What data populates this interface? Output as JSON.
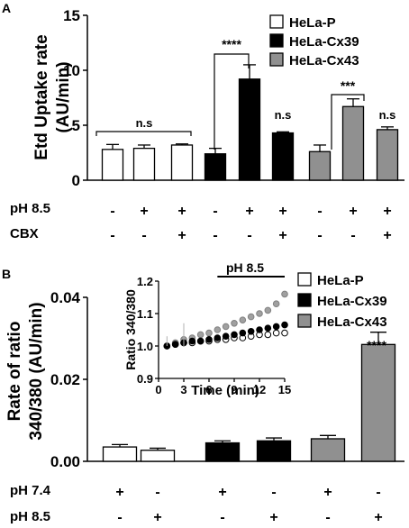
{
  "chart_data": [
    {
      "panel": "A",
      "type": "bar",
      "ylabel_line1": "Etd Uptake rate",
      "ylabel_line2": "(AU/min)",
      "ylim": [
        0,
        15
      ],
      "yticks": [
        "0",
        "5",
        "10",
        "15"
      ],
      "categories": [
        "1",
        "2",
        "3",
        "4",
        "5",
        "6",
        "7",
        "8",
        "9"
      ],
      "values": [
        2.8,
        2.9,
        3.2,
        2.4,
        9.2,
        4.3,
        2.6,
        6.7,
        4.6
      ],
      "errors": [
        0.45,
        0.3,
        0.1,
        0.5,
        1.3,
        0.1,
        0.6,
        0.7,
        0.25
      ],
      "groups": [
        0,
        0,
        0,
        1,
        1,
        1,
        2,
        2,
        2
      ],
      "series": [
        {
          "name": "HeLa-P",
          "color": "#ffffff"
        },
        {
          "name": "HeLa-Cx39",
          "color": "#000000"
        },
        {
          "name": "HeLa-Cx43",
          "color": "#909090"
        }
      ],
      "conditions": [
        {
          "label": "pH 8.5",
          "marks": [
            "-",
            "+",
            "+",
            "-",
            "+",
            "+",
            "-",
            "+",
            "+"
          ]
        },
        {
          "label": "CBX",
          "marks": [
            "-",
            "-",
            "+",
            "-",
            "-",
            "+",
            "-",
            "-",
            "+"
          ]
        }
      ],
      "annotations": {
        "ns_group": "n.s",
        "stars_cx39": "****",
        "ns_cx39": "n.s",
        "stars_cx43": "***",
        "ns_cx43": "n.s"
      },
      "legend_position": "top-right"
    },
    {
      "panel": "B",
      "type": "bar",
      "ylabel_line1": "Rate of ratio",
      "ylabel_line2": "340/380 (AU/min)",
      "ylim": [
        0,
        0.04
      ],
      "yticks": [
        "0.00",
        "0.02",
        "0.04"
      ],
      "categories": [
        "1",
        "2",
        "3",
        "4",
        "5",
        "6"
      ],
      "values": [
        0.0035,
        0.0027,
        0.0045,
        0.005,
        0.0055,
        0.0285
      ],
      "errors": [
        0.0006,
        0.0005,
        0.0005,
        0.0007,
        0.0008,
        0.003
      ],
      "groups": [
        0,
        0,
        1,
        1,
        2,
        2
      ],
      "series": [
        {
          "name": "HeLa-P",
          "color": "#ffffff"
        },
        {
          "name": "HeLa-Cx39",
          "color": "#000000"
        },
        {
          "name": "HeLa-Cx43",
          "color": "#909090"
        }
      ],
      "conditions": [
        {
          "label": "pH 7.4",
          "marks": [
            "+",
            "-",
            "+",
            "-",
            "+",
            "-"
          ]
        },
        {
          "label": "pH 8.5",
          "marks": [
            "-",
            "+",
            "-",
            "+",
            "-",
            "+"
          ]
        }
      ],
      "annotations": {
        "stars_cx43": "****"
      },
      "legend_position": "top-right"
    },
    {
      "panel": "B-inset",
      "type": "scatter",
      "xlabel": "Time (min)",
      "ylabel": "Ratio 340/380",
      "xlim": [
        0,
        15
      ],
      "ylim": [
        0.9,
        1.2
      ],
      "xticks": [
        "0",
        "3",
        "6",
        "9",
        "12",
        "15"
      ],
      "yticks": [
        "0.9",
        "1.0",
        "1.1",
        "1.2"
      ],
      "x": [
        1,
        2,
        3,
        4,
        5,
        6,
        7,
        8,
        9,
        10,
        11,
        12,
        13,
        14,
        15
      ],
      "series": [
        {
          "name": "HeLa-P",
          "values": [
            1.0,
            1.005,
            1.01,
            1.01,
            1.015,
            1.015,
            1.02,
            1.02,
            1.025,
            1.025,
            1.03,
            1.035,
            1.035,
            1.04,
            1.04
          ]
        },
        {
          "name": "HeLa-Cx39",
          "values": [
            1.0,
            1.005,
            1.01,
            1.015,
            1.015,
            1.02,
            1.025,
            1.03,
            1.035,
            1.04,
            1.045,
            1.05,
            1.055,
            1.06,
            1.065
          ]
        },
        {
          "name": "HeLa-Cx43",
          "values": [
            1.0,
            1.01,
            1.02,
            1.025,
            1.035,
            1.04,
            1.05,
            1.06,
            1.07,
            1.08,
            1.09,
            1.1,
            1.11,
            1.13,
            1.16
          ]
        }
      ],
      "annotation": "pH 8.5",
      "annotation_range": [
        7,
        15
      ]
    }
  ],
  "panel_labels": {
    "a": "A",
    "b": "B"
  }
}
